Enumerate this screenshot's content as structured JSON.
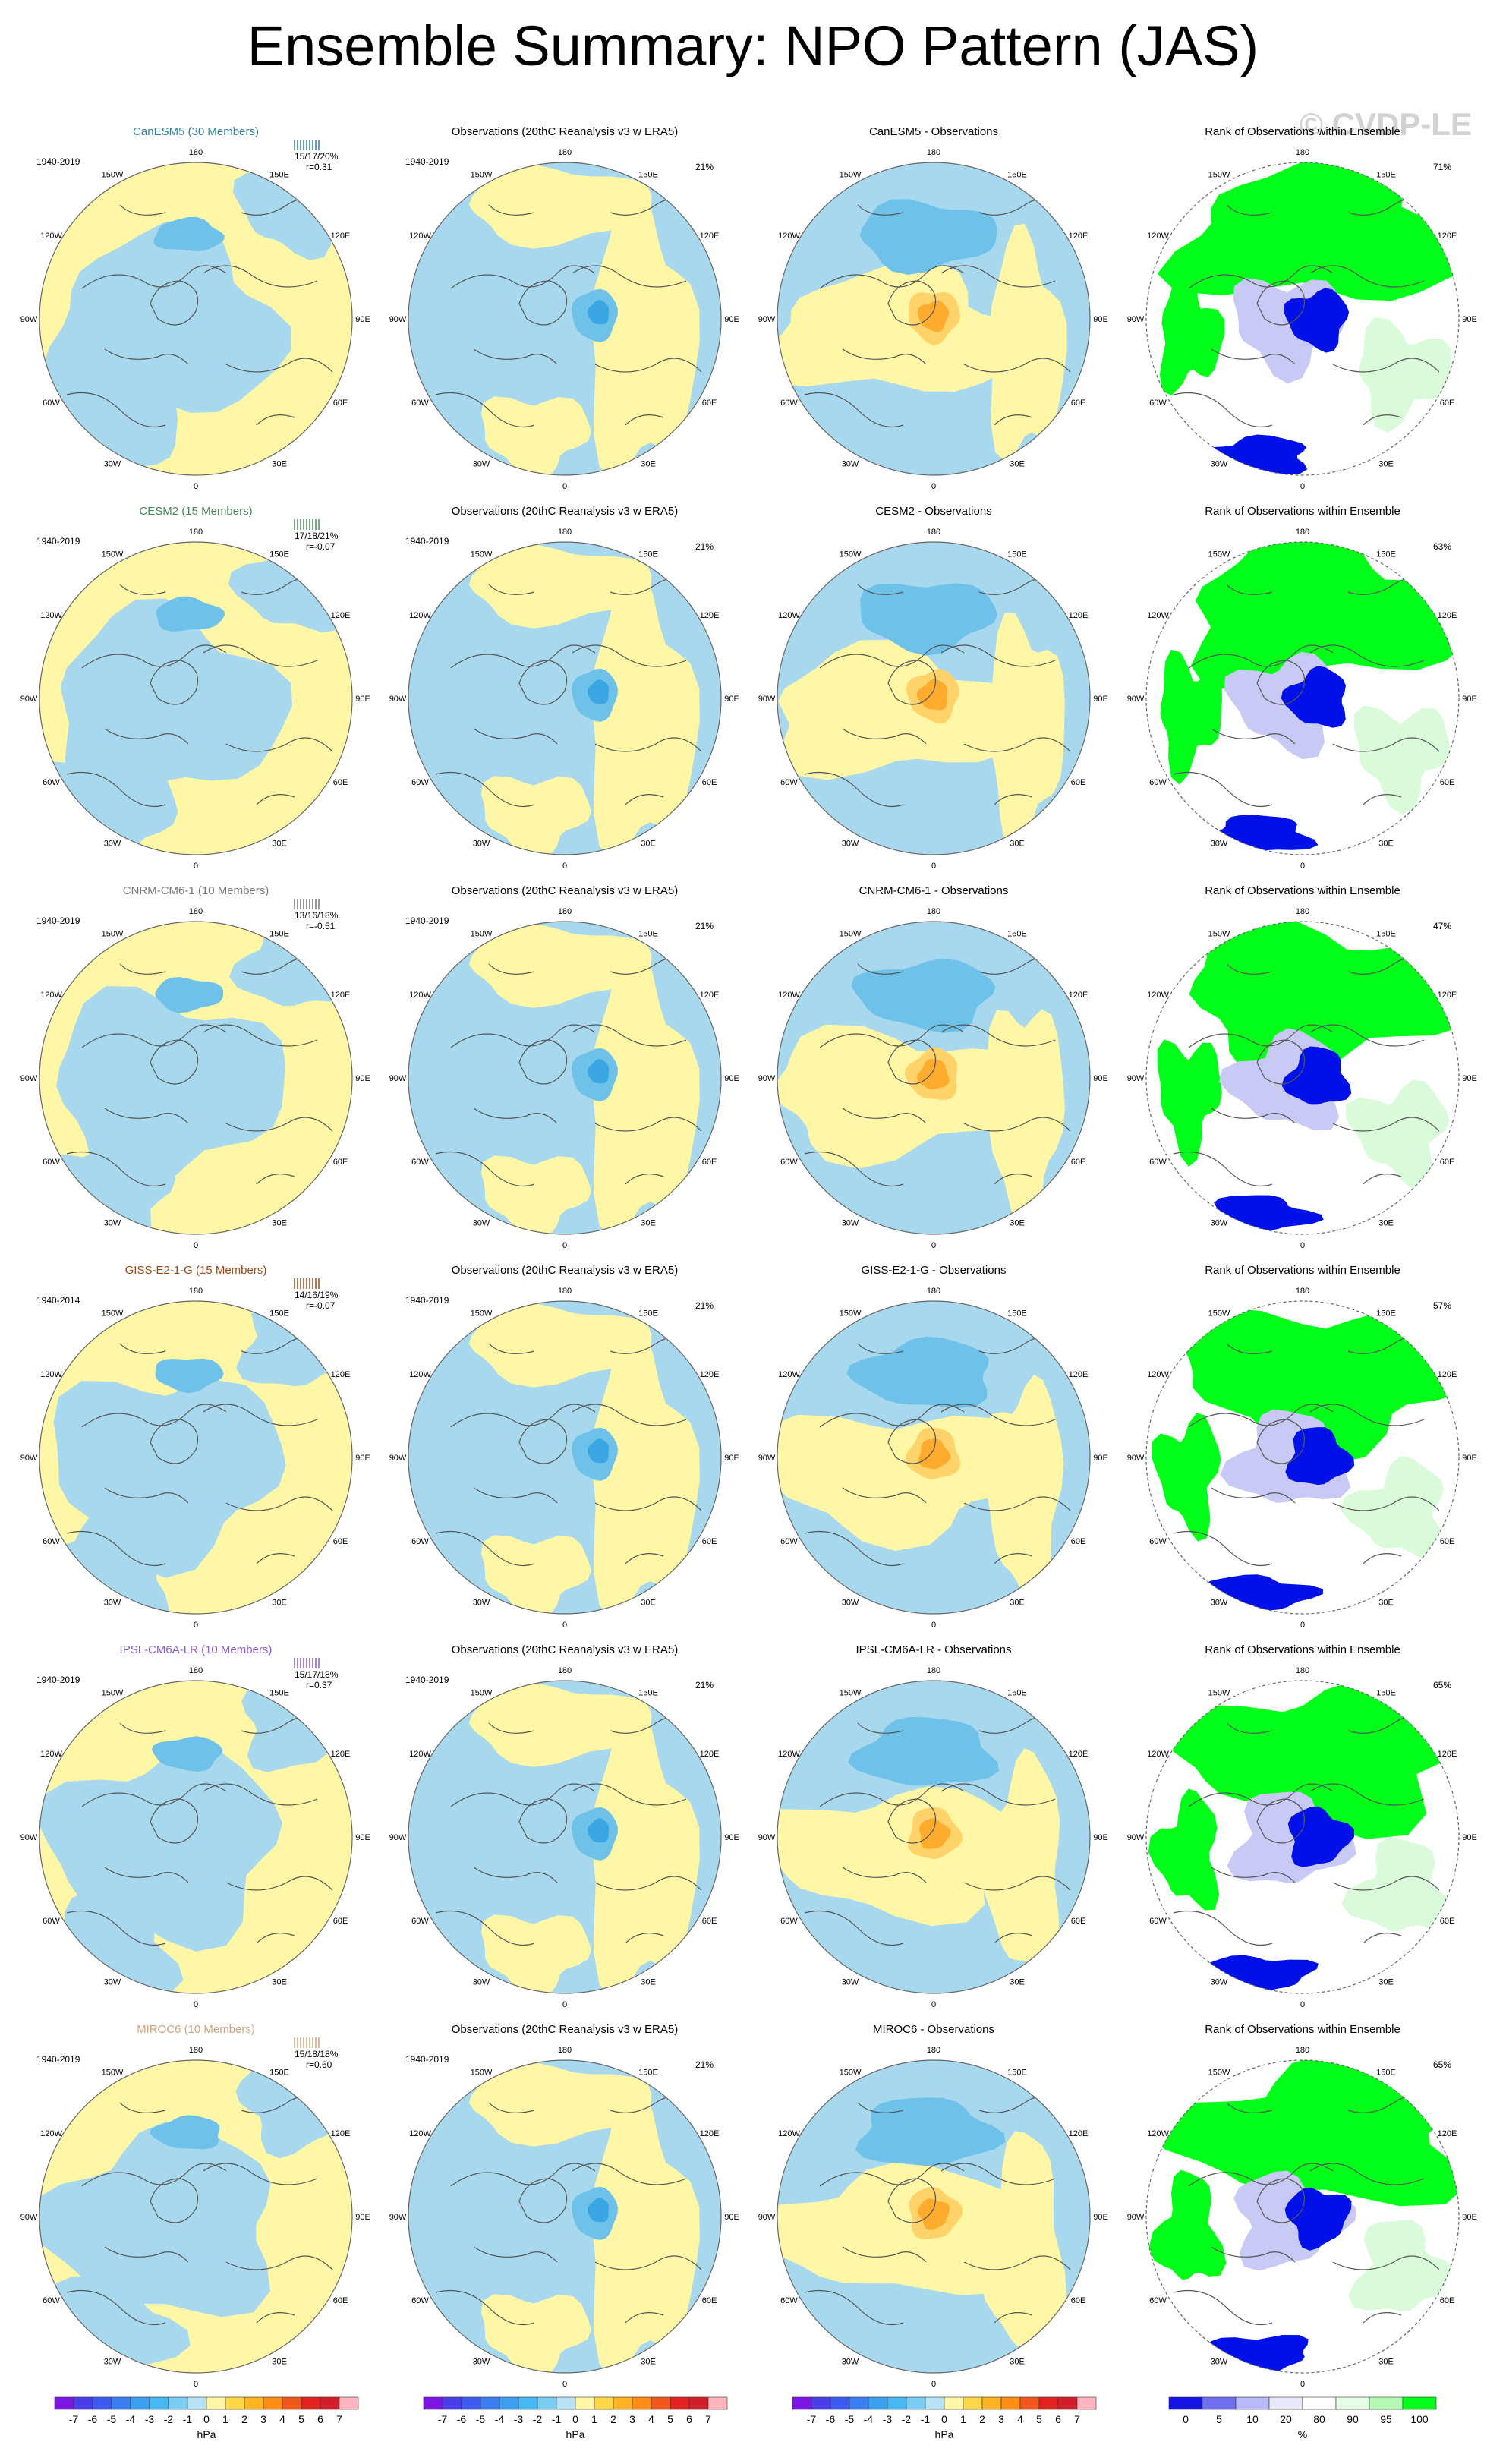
{
  "title": "Ensemble Summary: NPO Pattern (JAS)",
  "watermark": "© CVDP-LE",
  "colors": {
    "ocean_blue": "#a8d8ee",
    "light_yellow": "#fff7a6",
    "mid_blue": "#6ec2ea",
    "deep_blue": "#3aa7e4",
    "orange_light": "#ffd36a",
    "orange": "#ffac2e",
    "orange_deep": "#f08a18",
    "rank_green": "#00ff18",
    "rank_blue": "#0010e8",
    "rank_pale_blue": "#c9c9f5",
    "rank_pale_green": "#d9fbd9"
  },
  "lon_labels": [
    "180",
    "150E",
    "120E",
    "90E",
    "60E",
    "30E",
    "0",
    "30W",
    "60W",
    "90W",
    "120W",
    "150W"
  ],
  "rows": [
    {
      "model": "CanESM5 (30 Members)",
      "model_color": "#2a7fa0",
      "period": "1940-2019",
      "stats": "15/17/20%",
      "r": "r=0.31",
      "obs_title": "Observations (20thC Reanalysis v3 w ERA5)",
      "obs_period": "1940-2019",
      "obs_pct": "21%",
      "diff_title": "CanESM5 - Observations",
      "rank_title": "Rank of Observations within Ensemble",
      "rank_pct": "71%"
    },
    {
      "model": "CESM2 (15 Members)",
      "model_color": "#4b8a5b",
      "period": "1940-2019",
      "stats": "17/18/21%",
      "r": "r=-0.07",
      "obs_title": "Observations (20thC Reanalysis v3 w ERA5)",
      "obs_period": "1940-2019",
      "obs_pct": "21%",
      "diff_title": "CESM2 - Observations",
      "rank_title": "Rank of Observations within Ensemble",
      "rank_pct": "63%"
    },
    {
      "model": "CNRM-CM6-1 (10 Members)",
      "model_color": "#777777",
      "period": "1940-2019",
      "stats": "13/16/18%",
      "r": "r=-0.51",
      "obs_title": "Observations (20thC Reanalysis v3 w ERA5)",
      "obs_period": "1940-2019",
      "obs_pct": "21%",
      "diff_title": "CNRM-CM6-1 - Observations",
      "rank_title": "Rank of Observations within Ensemble",
      "rank_pct": "47%"
    },
    {
      "model": "GISS-E2-1-G (15 Members)",
      "model_color": "#9a4a14",
      "period": "1940-2014",
      "stats": "14/16/19%",
      "r": "r=-0.07",
      "obs_title": "Observations (20thC Reanalysis v3 w ERA5)",
      "obs_period": "1940-2019",
      "obs_pct": "21%",
      "diff_title": "GISS-E2-1-G - Observations",
      "rank_title": "Rank of Observations within Ensemble",
      "rank_pct": "57%"
    },
    {
      "model": "IPSL-CM6A-LR (10 Members)",
      "model_color": "#8a5ad0",
      "period": "1940-2019",
      "stats": "15/17/18%",
      "r": "r=0.37",
      "obs_title": "Observations (20thC Reanalysis v3 w ERA5)",
      "obs_period": "1940-2019",
      "obs_pct": "21%",
      "diff_title": "IPSL-CM6A-LR - Observations",
      "rank_title": "Rank of Observations within Ensemble",
      "rank_pct": "65%"
    },
    {
      "model": "MIROC6 (10 Members)",
      "model_color": "#d2a27a",
      "period": "1940-2019",
      "stats": "15/18/18%",
      "r": "r=0.60",
      "obs_title": "Observations (20thC Reanalysis v3 w ERA5)",
      "obs_period": "1940-2019",
      "obs_pct": "21%",
      "diff_title": "MIROC6 - Observations",
      "rank_title": "Rank of Observations within Ensemble",
      "rank_pct": "65%"
    }
  ],
  "colorbars": {
    "hpa_labels": [
      "-7",
      "-6",
      "-5",
      "-4",
      "-3",
      "-2",
      "-1",
      "0",
      "1",
      "2",
      "3",
      "4",
      "5",
      "6",
      "7"
    ],
    "hpa_unit": "hPa",
    "hpa_colors": [
      "#7a17e6",
      "#4b3ee9",
      "#3d5af0",
      "#3b7ef2",
      "#3b9ff0",
      "#47b9f2",
      "#79cdf2",
      "#b7e2f5",
      "#fff7a6",
      "#ffd84a",
      "#ffb31e",
      "#ff8c17",
      "#f2581c",
      "#e42020",
      "#d21d2a",
      "#ffb3bd"
    ],
    "rank_labels": [
      "0",
      "5",
      "10",
      "20",
      "80",
      "90",
      "95",
      "100"
    ],
    "rank_unit": "%",
    "rank_colors": [
      "#1414e6",
      "#6f6ff0",
      "#b9b9f7",
      "#e9e9fb",
      "#ffffff",
      "#e6fde6",
      "#b4fab4",
      "#00ff18"
    ]
  }
}
